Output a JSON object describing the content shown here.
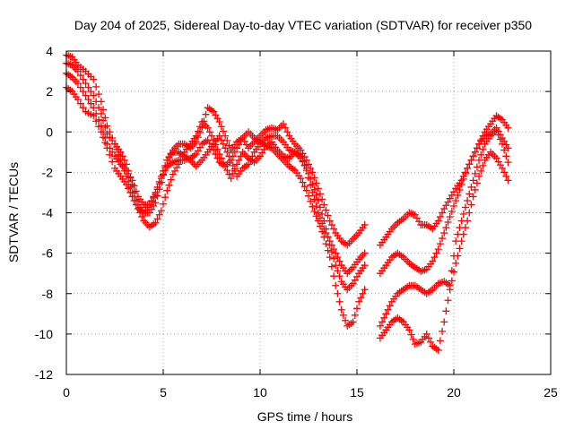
{
  "chart_data": {
    "type": "scatter",
    "title": "Day 204 of 2025, Sidereal Day-to-day VTEC variation (SDTVAR) for receiver p350",
    "xlabel": "GPS time / hours",
    "ylabel": "SDTVAR / TECUs",
    "xlim": [
      0,
      25
    ],
    "ylim": [
      -12,
      4
    ],
    "xticks": [
      0,
      5,
      10,
      15,
      20,
      25
    ],
    "yticks": [
      -12,
      -10,
      -8,
      -6,
      -4,
      -2,
      0,
      2,
      4
    ],
    "grid": true,
    "marker": "+",
    "color": "#ff0000",
    "series": [
      {
        "x": [
          0.0,
          0.3,
          0.6,
          1.0,
          1.4,
          1.8,
          2.1,
          2.5,
          2.8,
          3.1,
          3.4,
          3.7,
          4.0,
          4.3,
          4.6,
          4.9,
          5.2,
          5.5,
          5.8,
          6.1,
          6.4,
          6.7,
          7.0,
          7.3,
          7.6,
          7.9,
          8.2,
          8.5,
          8.8,
          9.1,
          9.4,
          9.7,
          10.0,
          10.3,
          10.6,
          10.9,
          11.2,
          11.5,
          11.8,
          12.1,
          12.4,
          12.7,
          13.0,
          13.3,
          13.6,
          13.9,
          14.2,
          14.5,
          14.8,
          15.1,
          15.4
        ],
        "y": [
          3.8,
          3.7,
          3.3,
          3.0,
          2.6,
          1.5,
          0.3,
          -0.6,
          -1.4,
          -2.2,
          -3.0,
          -3.6,
          -4.0,
          -4.0,
          -3.5,
          -2.5,
          -1.4,
          -0.9,
          -0.6,
          -0.6,
          -0.8,
          -0.5,
          0.2,
          1.2,
          1.0,
          0.5,
          -0.2,
          -0.9,
          -0.5,
          -0.3,
          -0.8,
          -0.5,
          -0.2,
          0.1,
          0.2,
          0.1,
          0.4,
          -0.2,
          -0.6,
          -0.9,
          -1.4,
          -2.0,
          -2.8,
          -3.6,
          -4.4,
          -5.0,
          -5.4,
          -5.6,
          -5.3,
          -5.0,
          -4.6
        ]
      },
      {
        "x": [
          0.0,
          0.3,
          0.6,
          1.0,
          1.4,
          1.8,
          2.1,
          2.5,
          2.8,
          3.1,
          3.4,
          3.7,
          4.0,
          4.3,
          4.6,
          4.9,
          5.2,
          5.5,
          5.8,
          6.1,
          6.4,
          6.7,
          7.0,
          7.3,
          7.6,
          7.9,
          8.2,
          8.5,
          8.8,
          9.1,
          9.4,
          9.7,
          10.0,
          10.3,
          10.6,
          10.9,
          11.2,
          11.5,
          11.8,
          12.1,
          12.4,
          12.7,
          13.0,
          13.3,
          13.6,
          13.9,
          14.2,
          14.5,
          14.8,
          15.1,
          15.4
        ],
        "y": [
          3.4,
          3.3,
          3.0,
          2.4,
          1.8,
          0.9,
          -0.1,
          -0.6,
          -1.0,
          -1.6,
          -2.6,
          -3.8,
          -4.4,
          -4.7,
          -4.5,
          -3.9,
          -2.9,
          -2.1,
          -1.6,
          -1.0,
          -0.6,
          -0.2,
          0.5,
          0.2,
          -0.4,
          -1.1,
          -1.7,
          -2.3,
          -1.6,
          -1.0,
          -1.3,
          -1.5,
          -1.2,
          -0.7,
          -0.5,
          -0.9,
          -1.2,
          -1.3,
          -1.0,
          -1.3,
          -1.8,
          -2.6,
          -3.4,
          -4.4,
          -5.6,
          -6.6,
          -7.4,
          -7.8,
          -7.5,
          -7.0,
          -6.6
        ]
      },
      {
        "x": [
          0.0,
          0.3,
          0.6,
          1.0,
          1.4,
          1.8,
          2.1,
          2.5,
          2.8,
          3.1,
          3.4,
          3.7,
          4.0,
          4.3,
          4.6,
          4.9,
          5.2,
          5.5,
          5.8,
          6.1,
          6.4,
          6.7,
          7.0,
          7.3,
          7.6,
          7.9,
          8.2,
          8.5,
          8.8,
          9.1,
          9.4,
          9.7,
          10.0,
          10.3,
          10.6,
          10.9,
          11.2,
          11.5,
          11.8,
          12.1,
          12.4,
          12.7,
          13.0,
          13.3,
          13.6,
          13.9,
          14.2,
          14.5,
          14.8,
          15.1,
          15.4
        ],
        "y": [
          2.9,
          2.7,
          2.4,
          1.8,
          1.2,
          0.3,
          -0.6,
          -1.2,
          -1.6,
          -1.9,
          -2.4,
          -3.2,
          -3.6,
          -3.6,
          -3.1,
          -2.3,
          -1.7,
          -1.5,
          -1.4,
          -1.4,
          -1.3,
          -1.1,
          -0.6,
          -0.4,
          -0.9,
          -1.5,
          -1.7,
          -1.4,
          -0.8,
          -0.3,
          0.0,
          -0.3,
          -0.5,
          -0.7,
          -0.8,
          -1.1,
          -1.4,
          -1.7,
          -1.9,
          -2.3,
          -2.9,
          -3.7,
          -4.4,
          -5.2,
          -6.2,
          -7.6,
          -8.8,
          -9.6,
          -9.4,
          -8.4,
          -7.8
        ]
      },
      {
        "x": [
          0.0,
          0.3,
          0.6,
          1.0,
          1.4,
          1.8,
          2.1,
          2.5,
          2.8,
          3.1,
          3.4,
          3.7,
          4.0,
          4.3,
          4.6,
          4.9,
          5.2,
          5.5,
          5.8,
          6.1,
          6.4,
          6.7,
          7.0,
          7.3,
          7.6,
          7.9,
          8.2,
          8.5,
          8.8,
          9.1,
          9.4,
          9.7,
          10.0,
          10.3,
          10.6,
          10.9,
          11.2,
          11.5,
          11.8,
          12.1,
          12.4,
          12.7,
          13.0,
          13.3,
          13.6,
          13.9,
          14.2,
          14.5,
          14.8,
          15.1,
          15.4
        ],
        "y": [
          2.2,
          2.0,
          1.6,
          1.0,
          0.8,
          0.0,
          -0.8,
          -1.8,
          -2.2,
          -2.6,
          -3.2,
          -3.8,
          -4.0,
          -3.6,
          -3.0,
          -2.2,
          -1.4,
          -1.0,
          -1.0,
          -1.2,
          -1.4,
          -1.7,
          -1.4,
          -1.0,
          -0.6,
          -0.2,
          -0.8,
          -1.4,
          -2.2,
          -1.8,
          -1.6,
          -1.0,
          -0.6,
          -0.3,
          -0.2,
          -0.2,
          -0.5,
          -0.9,
          -1.0,
          -1.2,
          -1.9,
          -3.0,
          -4.0,
          -4.8,
          -5.4,
          -6.0,
          -6.6,
          -7.0,
          -6.7,
          -6.3,
          -6.0
        ]
      },
      {
        "x": [
          16.2,
          16.5,
          16.8,
          17.1,
          17.4,
          17.7,
          18.0,
          18.3,
          18.6,
          18.9,
          19.2,
          19.5,
          19.8,
          20.1,
          20.4,
          20.7,
          21.0,
          21.3,
          21.6,
          21.9,
          22.2,
          22.5,
          22.8
        ],
        "y": [
          -5.6,
          -5.2,
          -4.8,
          -4.5,
          -4.3,
          -4.0,
          -4.1,
          -4.6,
          -4.6,
          -4.8,
          -4.4,
          -3.8,
          -3.3,
          -2.8,
          -2.4,
          -1.8,
          -1.2,
          -0.6,
          0.0,
          0.4,
          0.8,
          0.6,
          0.2
        ]
      },
      {
        "x": [
          16.2,
          16.5,
          16.8,
          17.1,
          17.4,
          17.7,
          18.0,
          18.3,
          18.6,
          18.9,
          19.2,
          19.5,
          19.8,
          20.1,
          20.4,
          20.7,
          21.0,
          21.3,
          21.6,
          21.9,
          22.2,
          22.5,
          22.8
        ],
        "y": [
          -7.0,
          -6.6,
          -6.2,
          -6.0,
          -6.2,
          -6.5,
          -6.7,
          -6.9,
          -6.8,
          -6.4,
          -5.8,
          -5.0,
          -4.2,
          -3.4,
          -2.6,
          -1.8,
          -1.2,
          -0.6,
          -0.2,
          -0.1,
          0.2,
          -0.3,
          -0.8
        ]
      },
      {
        "x": [
          16.2,
          16.5,
          16.8,
          17.1,
          17.4,
          17.7,
          18.0,
          18.3,
          18.6,
          18.9,
          19.2,
          19.5,
          19.8,
          20.1,
          20.4,
          20.7,
          21.0,
          21.3,
          21.6,
          21.9,
          22.2,
          22.5,
          22.8
        ],
        "y": [
          -9.6,
          -9.0,
          -8.4,
          -8.0,
          -7.8,
          -7.6,
          -7.6,
          -7.8,
          -8.0,
          -7.8,
          -7.5,
          -7.4,
          -7.6,
          -5.4,
          -4.4,
          -3.4,
          -2.4,
          -1.4,
          -0.6,
          -0.2,
          0.1,
          -0.6,
          -1.5
        ]
      },
      {
        "x": [
          16.2,
          16.5,
          16.8,
          17.1,
          17.4,
          17.7,
          18.0,
          18.3,
          18.6,
          18.9,
          19.2,
          19.5,
          19.8,
          20.1,
          20.4,
          20.7,
          21.0,
          21.3,
          21.6,
          21.9,
          22.2,
          22.5,
          22.8
        ],
        "y": [
          -10.2,
          -9.8,
          -9.4,
          -9.2,
          -9.4,
          -9.8,
          -10.5,
          -10.4,
          -10.0,
          -10.6,
          -10.8,
          -9.4,
          -7.8,
          -6.5,
          -5.4,
          -4.4,
          -3.2,
          -2.2,
          -1.4,
          -1.0,
          -1.3,
          -1.8,
          -2.4
        ]
      }
    ]
  }
}
